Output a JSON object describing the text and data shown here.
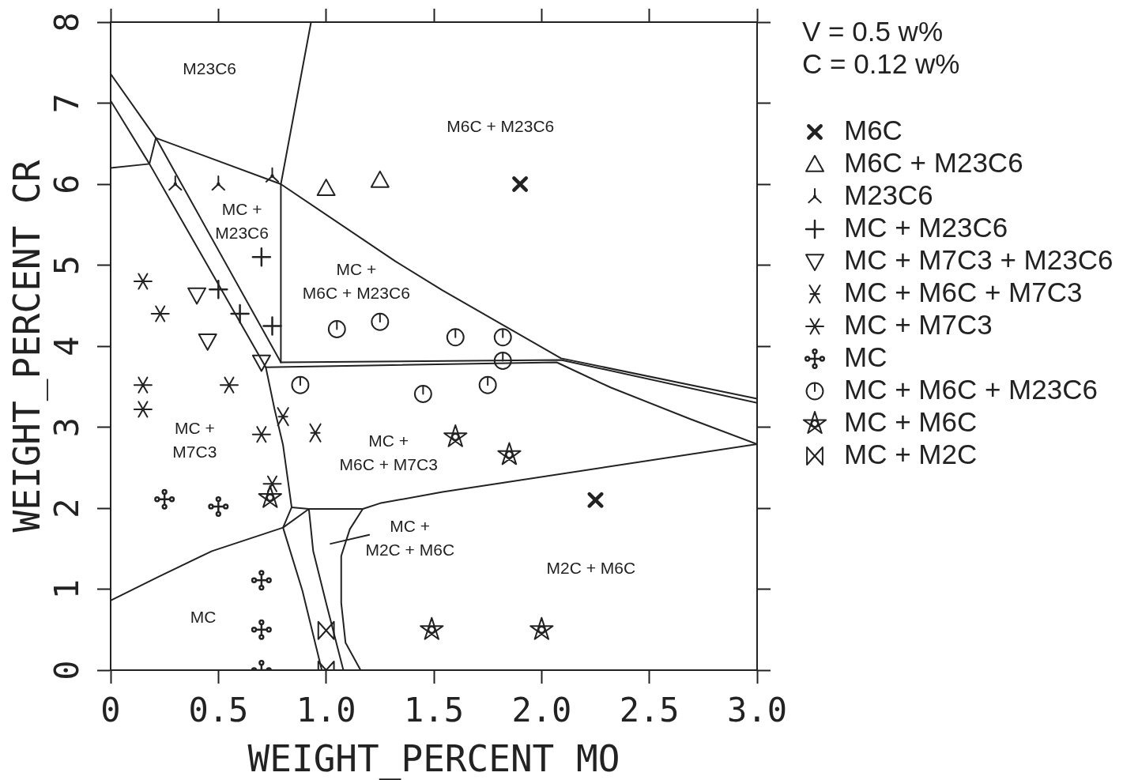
{
  "chart_data": {
    "type": "scatter",
    "xlabel": "WEIGHT_PERCENT MO",
    "ylabel": "WEIGHT_PERCENT CR",
    "xlim": [
      0,
      3
    ],
    "xticks": [
      0,
      0.5,
      {
        "value": 1,
        "label": "1.0"
      },
      1.5,
      {
        "value": 2,
        "label": "2.0"
      },
      2.5,
      {
        "value": 3,
        "label": "3.0"
      }
    ],
    "ylim": [
      0,
      8
    ],
    "yticks": [
      0,
      1,
      2,
      3,
      4,
      5,
      6,
      7,
      8
    ],
    "legend": "right",
    "annotations": [
      "V = 0.5 w%",
      "C = 0.12 w%",
      "M23C6",
      "M6C + M23C6",
      "MC +\nM23C6",
      "MC +\nM6C + M23C6",
      "MC +\nM7C3",
      "MC +\nM6C + M7C3",
      "MC +\nM2C + M6C",
      "M2C + M6C",
      "MC"
    ],
    "series": [
      {
        "name": "M6C",
        "color": "#222222",
        "marker": "cross",
        "x": [
          1.9,
          2.25
        ],
        "values": [
          6.0,
          2.1
        ]
      },
      {
        "name": "M6C + M23C6",
        "color": "#222222",
        "marker": "triangle",
        "x": [
          1.0,
          1.25
        ],
        "values": [
          5.95,
          6.05
        ]
      },
      {
        "name": "M23C6",
        "color": "#222222",
        "marker": "cross",
        "x": [
          0.3,
          0.5,
          0.75
        ],
        "values": [
          6.0,
          6.0,
          6.1
        ]
      },
      {
        "name": "MC + M23C6",
        "color": "#222222",
        "marker": "cross",
        "x": [
          0.5,
          0.6,
          0.7,
          0.75
        ],
        "values": [
          4.7,
          4.4,
          5.1,
          4.25
        ]
      },
      {
        "name": "MC + M7C3 + M23C6",
        "color": "#222222",
        "marker": "triangle",
        "x": [
          0.4,
          0.45,
          0.7
        ],
        "values": [
          4.63,
          4.06,
          3.8
        ]
      },
      {
        "name": "MC + M6C + M7C3",
        "color": "#222222",
        "marker": "cross",
        "x": [
          0.8,
          0.95
        ],
        "values": [
          3.13,
          2.93
        ]
      },
      {
        "name": "MC + M7C3",
        "color": "#222222",
        "marker": "cross",
        "x": [
          0.15,
          0.23,
          0.15,
          0.15,
          0.55,
          0.7,
          0.75
        ],
        "values": [
          4.8,
          4.4,
          3.52,
          3.22,
          3.52,
          2.91,
          2.3
        ]
      },
      {
        "name": "MC",
        "color": "#222222",
        "marker": "cross",
        "x": [
          0.25,
          0.5,
          0.7,
          0.7,
          0.7
        ],
        "values": [
          2.11,
          2.02,
          1.11,
          0.5,
          0
        ]
      },
      {
        "name": "MC + M6C + M23C6",
        "color": "#222222",
        "marker": "cross",
        "x": [
          1.05,
          1.25,
          1.6,
          1.82,
          1.82,
          0.88,
          1.45,
          1.75
        ],
        "values": [
          4.21,
          4.3,
          4.11,
          4.11,
          3.82,
          3.52,
          3.41,
          3.52
        ]
      },
      {
        "name": "MC + M6C",
        "color": "#222222",
        "marker": "cross",
        "x": [
          0.74,
          1.6,
          1.85,
          1.49,
          2.0
        ],
        "values": [
          2.13,
          2.88,
          2.66,
          0.5,
          0.5
        ]
      },
      {
        "name": "MC + M2C",
        "color": "#222222",
        "marker": "diamond",
        "x": [
          1.0,
          1.0
        ],
        "values": [
          0.49,
          0
        ]
      },
      {
        "type": "line",
        "color": "#222222",
        "x": [
          0.93,
          0.79,
          0.79
        ],
        "values": [
          8.0,
          6.0,
          3.8
        ]
      },
      {
        "type": "line",
        "color": "#222222",
        "x": [
          0,
          0.21,
          0.79
        ],
        "values": [
          7.36,
          6.57,
          3.8
        ]
      },
      {
        "type": "line",
        "color": "#222222",
        "x": [
          0,
          0.18,
          0.72
        ],
        "values": [
          7.03,
          6.25,
          3.74
        ]
      },
      {
        "type": "line",
        "color": "#222222",
        "x": [
          0,
          0.18
        ],
        "values": [
          6.2,
          6.25
        ]
      },
      {
        "type": "line",
        "color": "#222222",
        "x": [
          0.18,
          0.21
        ],
        "values": [
          6.25,
          6.57
        ]
      },
      {
        "type": "line",
        "color": "#222222",
        "x": [
          0.21,
          0.79,
          1.32,
          1.54,
          2.09,
          3.0
        ],
        "values": [
          6.57,
          6.0,
          5.05,
          4.69,
          3.85,
          3.35
        ]
      },
      {
        "type": "line",
        "color": "#222222",
        "x": [
          0.79,
          2.09,
          3.0
        ],
        "values": [
          3.8,
          3.83,
          3.3
        ]
      },
      {
        "type": "line",
        "color": "#222222",
        "x": [
          0.72,
          2.07,
          2.32,
          2.69,
          3.0
        ],
        "values": [
          3.74,
          3.8,
          3.49,
          3.1,
          2.79
        ]
      },
      {
        "type": "line",
        "color": "#222222",
        "x": [
          0.84,
          0.92,
          1.17,
          1.25,
          1.54,
          3.0
        ],
        "values": [
          2.01,
          1.99,
          1.99,
          2.06,
          2.2,
          2.79
        ]
      },
      {
        "type": "line",
        "color": "#222222",
        "x": [
          0.72,
          0.76,
          0.8,
          0.84,
          0.8,
          0.89,
          0.98
        ],
        "values": [
          3.74,
          3.23,
          2.78,
          2.01,
          1.76,
          0.98,
          0
        ]
      },
      {
        "type": "line",
        "color": "#222222",
        "x": [
          0,
          0.22,
          0.47,
          0.8,
          0.92
        ],
        "values": [
          0.86,
          1.15,
          1.47,
          1.76,
          1.99
        ]
      },
      {
        "type": "line",
        "color": "#222222",
        "x": [
          0.92,
          0.94,
          1.0,
          1.08
        ],
        "values": [
          1.99,
          1.47,
          0.83,
          0
        ]
      },
      {
        "type": "line",
        "color": "#222222",
        "x": [
          1.17,
          1.11,
          1.07,
          1.07,
          1.09,
          1.16
        ],
        "values": [
          1.99,
          1.74,
          1.41,
          0.83,
          0.34,
          0
        ]
      },
      {
        "type": "line",
        "color": "#222222",
        "x": [
          1.02,
          1.2
        ],
        "values": [
          1.56,
          1.67
        ]
      }
    ]
  }
}
